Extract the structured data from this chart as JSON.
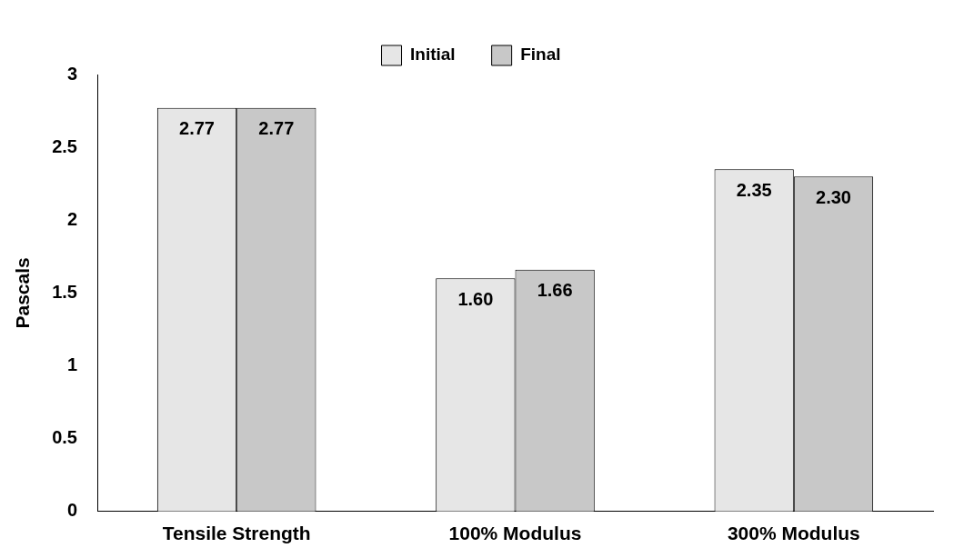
{
  "chart_data": {
    "type": "bar",
    "ylabel": "Pascals",
    "categories": [
      "Tensile Strength",
      "100% Modulus",
      "300% Modulus"
    ],
    "series": [
      {
        "name": "Initial",
        "color": "#e6e6e6",
        "values": [
          2.77,
          1.6,
          2.35
        ]
      },
      {
        "name": "Final",
        "color": "#c8c8c8",
        "values": [
          2.77,
          1.66,
          2.3
        ]
      }
    ],
    "ylim": [
      0,
      3
    ],
    "yticks": [
      0,
      {
        "value": 0.5,
        "label": "0.5"
      },
      1,
      {
        "value": 1.5,
        "label": "1.5"
      },
      2,
      {
        "value": 2.5,
        "label": "2.5"
      },
      3
    ],
    "value_labels": [
      [
        "2.77",
        "1.60",
        "2.35"
      ],
      [
        "2.77",
        "1.66",
        "2.30"
      ]
    ],
    "legend": "top",
    "grid": false
  }
}
